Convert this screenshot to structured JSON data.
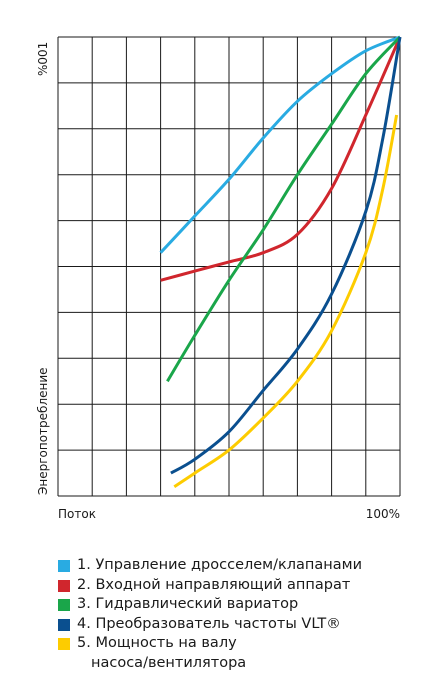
{
  "chart_data": {
    "type": "line",
    "xlabel": "Поток",
    "ylabel": "Энергопотребление",
    "x_tick_labels": [
      "Поток",
      "100%"
    ],
    "y_tick_labels": [
      "%001"
    ],
    "xlim": [
      0,
      100
    ],
    "ylim": [
      0,
      100
    ],
    "grid": true,
    "legend_position": "bottom",
    "series": [
      {
        "name": "1. Управление дросселем/клапанами",
        "color": "#29abe2",
        "x": [
          30,
          40,
          50,
          60,
          70,
          80,
          90,
          100
        ],
        "y": [
          53,
          61,
          69,
          78,
          86,
          92,
          97,
          100
        ]
      },
      {
        "name": "2. Входной направляющий аппарат",
        "color": "#d0262d",
        "x": [
          30,
          40,
          50,
          60,
          70,
          80,
          90,
          100
        ],
        "y": [
          47,
          49,
          51,
          53,
          57,
          67,
          83,
          100
        ]
      },
      {
        "name": "3. Гидравлический вариатор",
        "color": "#1aa64a",
        "x": [
          32,
          40,
          50,
          60,
          70,
          80,
          90,
          100
        ],
        "y": [
          25,
          35,
          47,
          58,
          70,
          81,
          92,
          100
        ]
      },
      {
        "name": "4. Преобразователь частоты VLT®",
        "color": "#0a4f8f",
        "x": [
          33,
          40,
          50,
          60,
          70,
          80,
          90,
          95,
          100
        ],
        "y": [
          5,
          8,
          14,
          23,
          32,
          44,
          62,
          78,
          100
        ]
      },
      {
        "name": "5. Мощность на валу насоса/вентилятора",
        "name_lines": [
          "5. Мощность на валу",
          "насоса/вентилятора"
        ],
        "color": "#fdcc00",
        "x": [
          34,
          40,
          50,
          60,
          70,
          80,
          90,
          95,
          99
        ],
        "y": [
          2,
          5,
          10,
          17,
          25,
          36,
          53,
          67,
          83
        ]
      }
    ]
  }
}
